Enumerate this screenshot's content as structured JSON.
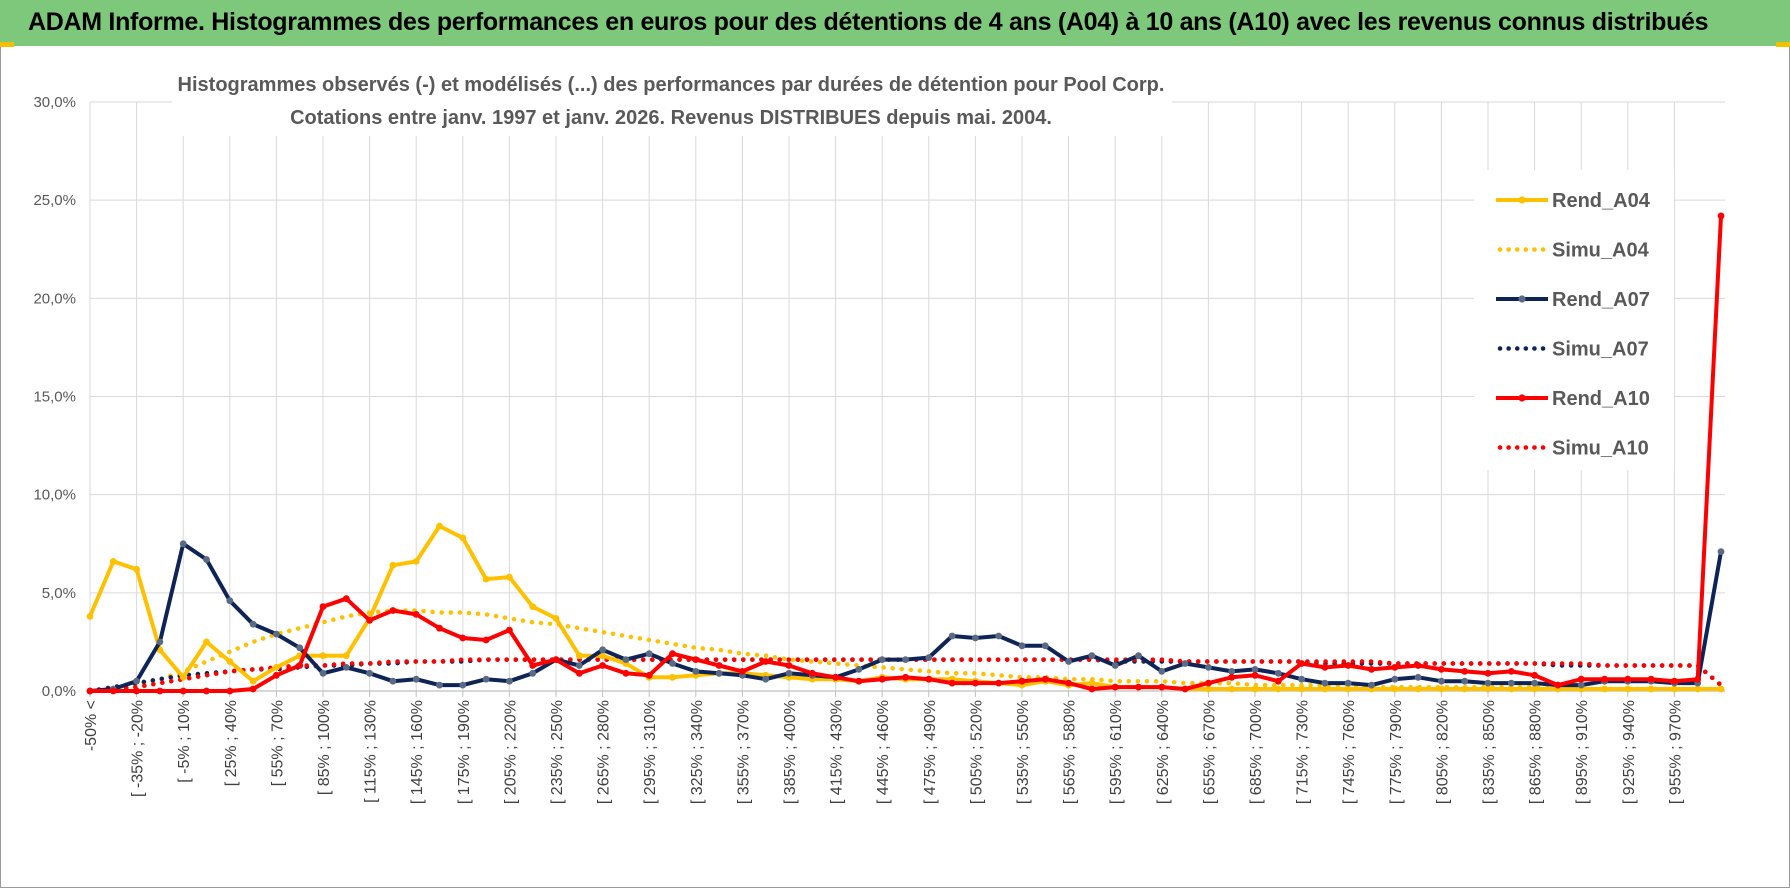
{
  "banner": {
    "title": "ADAM Informe. Histogrammes des performances en euros pour des détentions de 4 ans (A04) à 10 ans (A10) avec les revenus connus distribués"
  },
  "colors": {
    "banner": "#7dc87a",
    "A04": "#ffc000",
    "A07": "#0e2457",
    "A10": "#ff0000",
    "grid": "#d9d9d9"
  },
  "chart_data": {
    "type": "line",
    "title": "Histogrammes observés (-) et modélisés (...) des performances par durées de détention pour Pool Corp.",
    "subtitle": "Cotations entre janv. 1997 et janv. 2026. Revenus DISTRIBUES depuis mai. 2004.",
    "ylim": [
      0,
      30
    ],
    "yticks": [
      "0,0%",
      "5,0%",
      "10,0%",
      "15,0%",
      "20,0%",
      "25,0%",
      "30,0%"
    ],
    "x_labels": [
      "-50% <",
      "[ -35% ; -20%",
      "[ -5% ; 10%",
      "[ 25% ; 40%",
      "[ 55% ; 70%",
      "[ 85% ; 100%",
      "[ 115% ; 130%",
      "[ 145% ; 160%",
      "[ 175% ; 190%",
      "[ 205% ; 220%",
      "[ 235% ; 250%",
      "[ 265% ; 280%",
      "[ 295% ; 310%",
      "[ 325% ; 340%",
      "[ 355% ; 370%",
      "[ 385% ; 400%",
      "[ 415% ; 430%",
      "[ 445% ; 460%",
      "[ 475% ; 490%",
      "[ 505% ; 520%",
      "[ 535% ; 550%",
      "[ 565% ; 580%",
      "[ 595% ; 610%",
      "[ 625% ; 640%",
      "[ 655% ; 670%",
      "[ 685% ; 700%",
      "[ 715% ; 730%",
      "[ 745% ; 760%",
      "[ 775% ; 790%",
      "[ 805% ; 820%",
      "[ 835% ; 850%",
      "[ 865% ; 880%",
      "[ 895% ; 910%",
      "[ 925% ; 940%",
      "[ 955% ; 970%"
    ],
    "legend_position": "right",
    "series": [
      {
        "name": "Rend_A04",
        "style": "solid",
        "color": "#ffc000",
        "values": [
          3.8,
          6.6,
          6.2,
          2.1,
          0.7,
          2.5,
          1.5,
          0.5,
          1.2,
          1.8,
          1.8,
          1.8,
          3.7,
          6.4,
          6.6,
          8.4,
          7.8,
          5.7,
          5.8,
          4.3,
          3.7,
          1.8,
          1.8,
          1.4,
          0.7,
          0.7,
          0.8,
          0.9,
          0.9,
          0.8,
          0.7,
          0.6,
          0.6,
          0.5,
          0.7,
          0.6,
          0.6,
          0.6,
          0.5,
          0.4,
          0.3,
          0.5,
          0.3,
          0.4,
          0.2,
          0.2,
          0.2,
          0.1,
          0.1,
          0.1,
          0.1,
          0.1,
          0.1,
          0.1,
          0.1,
          0.1,
          0.1,
          0.1,
          0.1,
          0.1,
          0.1,
          0.1,
          0.1,
          0.1,
          0.1,
          0.1,
          0.1,
          0.1,
          0.1,
          0.1,
          0.1
        ]
      },
      {
        "name": "Simu_A04",
        "style": "dotted",
        "color": "#ffc000",
        "values": [
          0.0,
          0.1,
          0.3,
          0.6,
          1.0,
          1.5,
          2.0,
          2.5,
          2.9,
          3.2,
          3.5,
          3.8,
          4.0,
          4.1,
          4.1,
          4.0,
          4.0,
          3.9,
          3.7,
          3.5,
          3.4,
          3.2,
          3.0,
          2.8,
          2.6,
          2.4,
          2.2,
          2.1,
          1.9,
          1.8,
          1.6,
          1.5,
          1.4,
          1.3,
          1.2,
          1.1,
          1.0,
          0.9,
          0.9,
          0.8,
          0.7,
          0.7,
          0.6,
          0.6,
          0.5,
          0.5,
          0.5,
          0.4,
          0.4,
          0.4,
          0.3,
          0.3,
          0.3,
          0.3,
          0.3,
          0.2,
          0.2,
          0.2,
          0.2,
          0.2,
          0.2,
          0.2,
          0.2,
          0.1,
          0.1,
          0.1,
          0.1,
          0.1,
          0.1,
          0.1,
          0.1
        ]
      },
      {
        "name": "Rend_A07",
        "style": "solid",
        "color": "#0e2457",
        "values": [
          0.0,
          0.1,
          0.5,
          2.5,
          7.5,
          6.7,
          4.6,
          3.4,
          2.9,
          2.2,
          0.9,
          1.2,
          0.9,
          0.5,
          0.6,
          0.3,
          0.3,
          0.6,
          0.5,
          0.9,
          1.6,
          1.3,
          2.1,
          1.6,
          1.9,
          1.4,
          1.0,
          0.9,
          0.8,
          0.6,
          0.9,
          0.8,
          0.7,
          1.1,
          1.6,
          1.6,
          1.7,
          2.8,
          2.7,
          2.8,
          2.3,
          2.3,
          1.5,
          1.8,
          1.3,
          1.8,
          1.0,
          1.4,
          1.2,
          1.0,
          1.1,
          0.9,
          0.6,
          0.4,
          0.4,
          0.3,
          0.6,
          0.7,
          0.5,
          0.5,
          0.4,
          0.4,
          0.4,
          0.3,
          0.3,
          0.5,
          0.5,
          0.5,
          0.4,
          0.4,
          7.1
        ]
      },
      {
        "name": "Simu_A07",
        "style": "dotted",
        "color": "#0e2457",
        "values": [
          0.0,
          0.2,
          0.4,
          0.6,
          0.8,
          0.9,
          1.0,
          1.1,
          1.1,
          1.2,
          1.3,
          1.3,
          1.4,
          1.4,
          1.5,
          1.5,
          1.5,
          1.6,
          1.6,
          1.6,
          1.6,
          1.6,
          1.6,
          1.6,
          1.6,
          1.6,
          1.6,
          1.6,
          1.6,
          1.6,
          1.6,
          1.6,
          1.6,
          1.6,
          1.6,
          1.6,
          1.6,
          1.6,
          1.6,
          1.6,
          1.6,
          1.6,
          1.6,
          1.6,
          1.5,
          1.5,
          1.5,
          1.5,
          1.5,
          1.5,
          1.5,
          1.5,
          1.5,
          1.4,
          1.4,
          1.4,
          1.4,
          1.4,
          1.4,
          1.4,
          1.4,
          1.4,
          1.4,
          1.3,
          1.3,
          1.3,
          1.3,
          1.3,
          1.3,
          1.3,
          0.3
        ]
      },
      {
        "name": "Rend_A10",
        "style": "solid",
        "color": "#ff0000",
        "values": [
          0.0,
          0.0,
          0.0,
          0.0,
          0.0,
          0.0,
          0.0,
          0.1,
          0.8,
          1.3,
          4.3,
          4.7,
          3.6,
          4.1,
          3.9,
          3.2,
          2.7,
          2.6,
          3.1,
          1.3,
          1.6,
          0.9,
          1.3,
          0.9,
          0.8,
          1.9,
          1.6,
          1.3,
          1.0,
          1.5,
          1.3,
          0.9,
          0.7,
          0.5,
          0.6,
          0.7,
          0.6,
          0.4,
          0.4,
          0.4,
          0.5,
          0.6,
          0.4,
          0.1,
          0.2,
          0.2,
          0.2,
          0.1,
          0.4,
          0.7,
          0.8,
          0.5,
          1.4,
          1.2,
          1.3,
          1.1,
          1.2,
          1.3,
          1.1,
          1.0,
          0.9,
          1.0,
          0.8,
          0.3,
          0.6,
          0.6,
          0.6,
          0.6,
          0.5,
          0.6,
          24.2
        ]
      },
      {
        "name": "Simu_A10",
        "style": "dotted",
        "color": "#ff0000",
        "values": [
          0.0,
          0.1,
          0.2,
          0.4,
          0.6,
          0.8,
          1.0,
          1.1,
          1.2,
          1.3,
          1.3,
          1.4,
          1.4,
          1.5,
          1.5,
          1.5,
          1.6,
          1.6,
          1.6,
          1.6,
          1.6,
          1.6,
          1.6,
          1.6,
          1.6,
          1.6,
          1.6,
          1.6,
          1.6,
          1.6,
          1.6,
          1.6,
          1.6,
          1.6,
          1.6,
          1.6,
          1.6,
          1.6,
          1.6,
          1.6,
          1.6,
          1.6,
          1.6,
          1.6,
          1.6,
          1.6,
          1.6,
          1.5,
          1.5,
          1.5,
          1.5,
          1.5,
          1.5,
          1.5,
          1.5,
          1.5,
          1.4,
          1.4,
          1.4,
          1.4,
          1.4,
          1.4,
          1.4,
          1.4,
          1.4,
          1.3,
          1.3,
          1.3,
          1.3,
          1.3,
          0.3
        ]
      }
    ]
  }
}
